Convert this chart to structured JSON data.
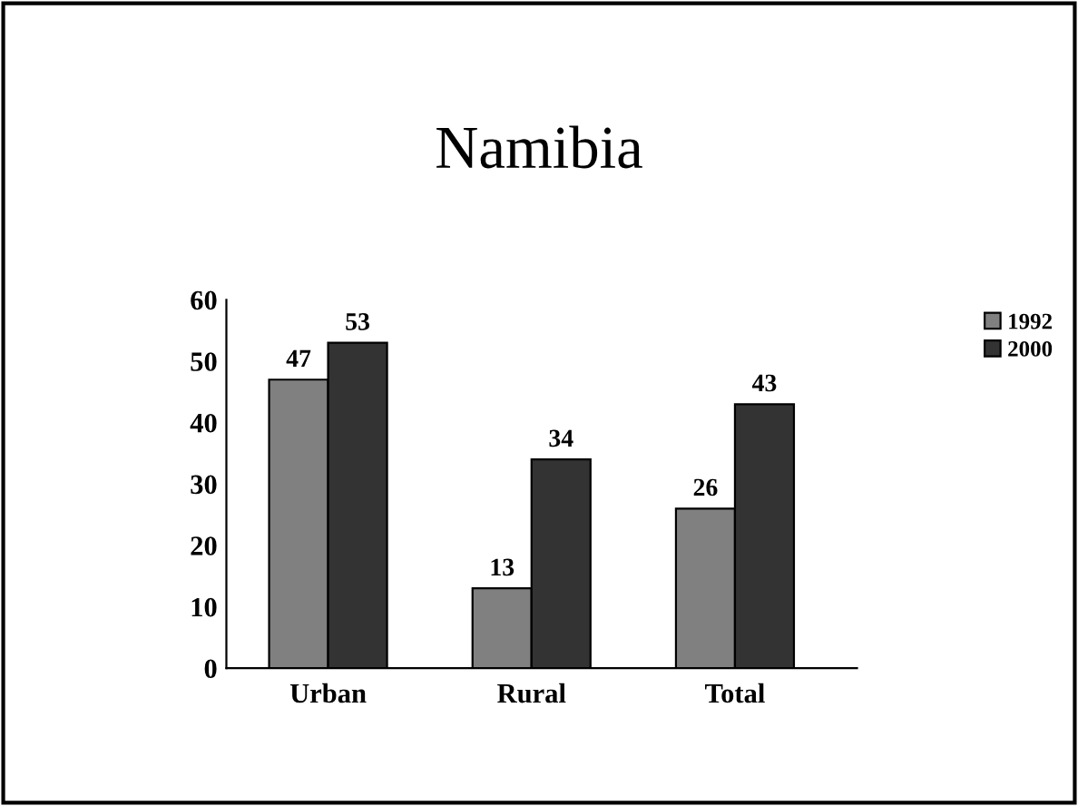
{
  "chart_data": {
    "type": "bar",
    "title": "Namibia",
    "categories": [
      "Urban",
      "Rural",
      "Total"
    ],
    "series": [
      {
        "name": "1992",
        "color": "#808080",
        "values": [
          47,
          13,
          26
        ]
      },
      {
        "name": "2000",
        "color": "#333333",
        "values": [
          53,
          34,
          43
        ]
      }
    ],
    "ylim": [
      0,
      60
    ],
    "yticks": [
      0,
      10,
      20,
      30,
      40,
      50,
      60
    ],
    "data_labels": true,
    "legend": "top right",
    "grid": false
  }
}
